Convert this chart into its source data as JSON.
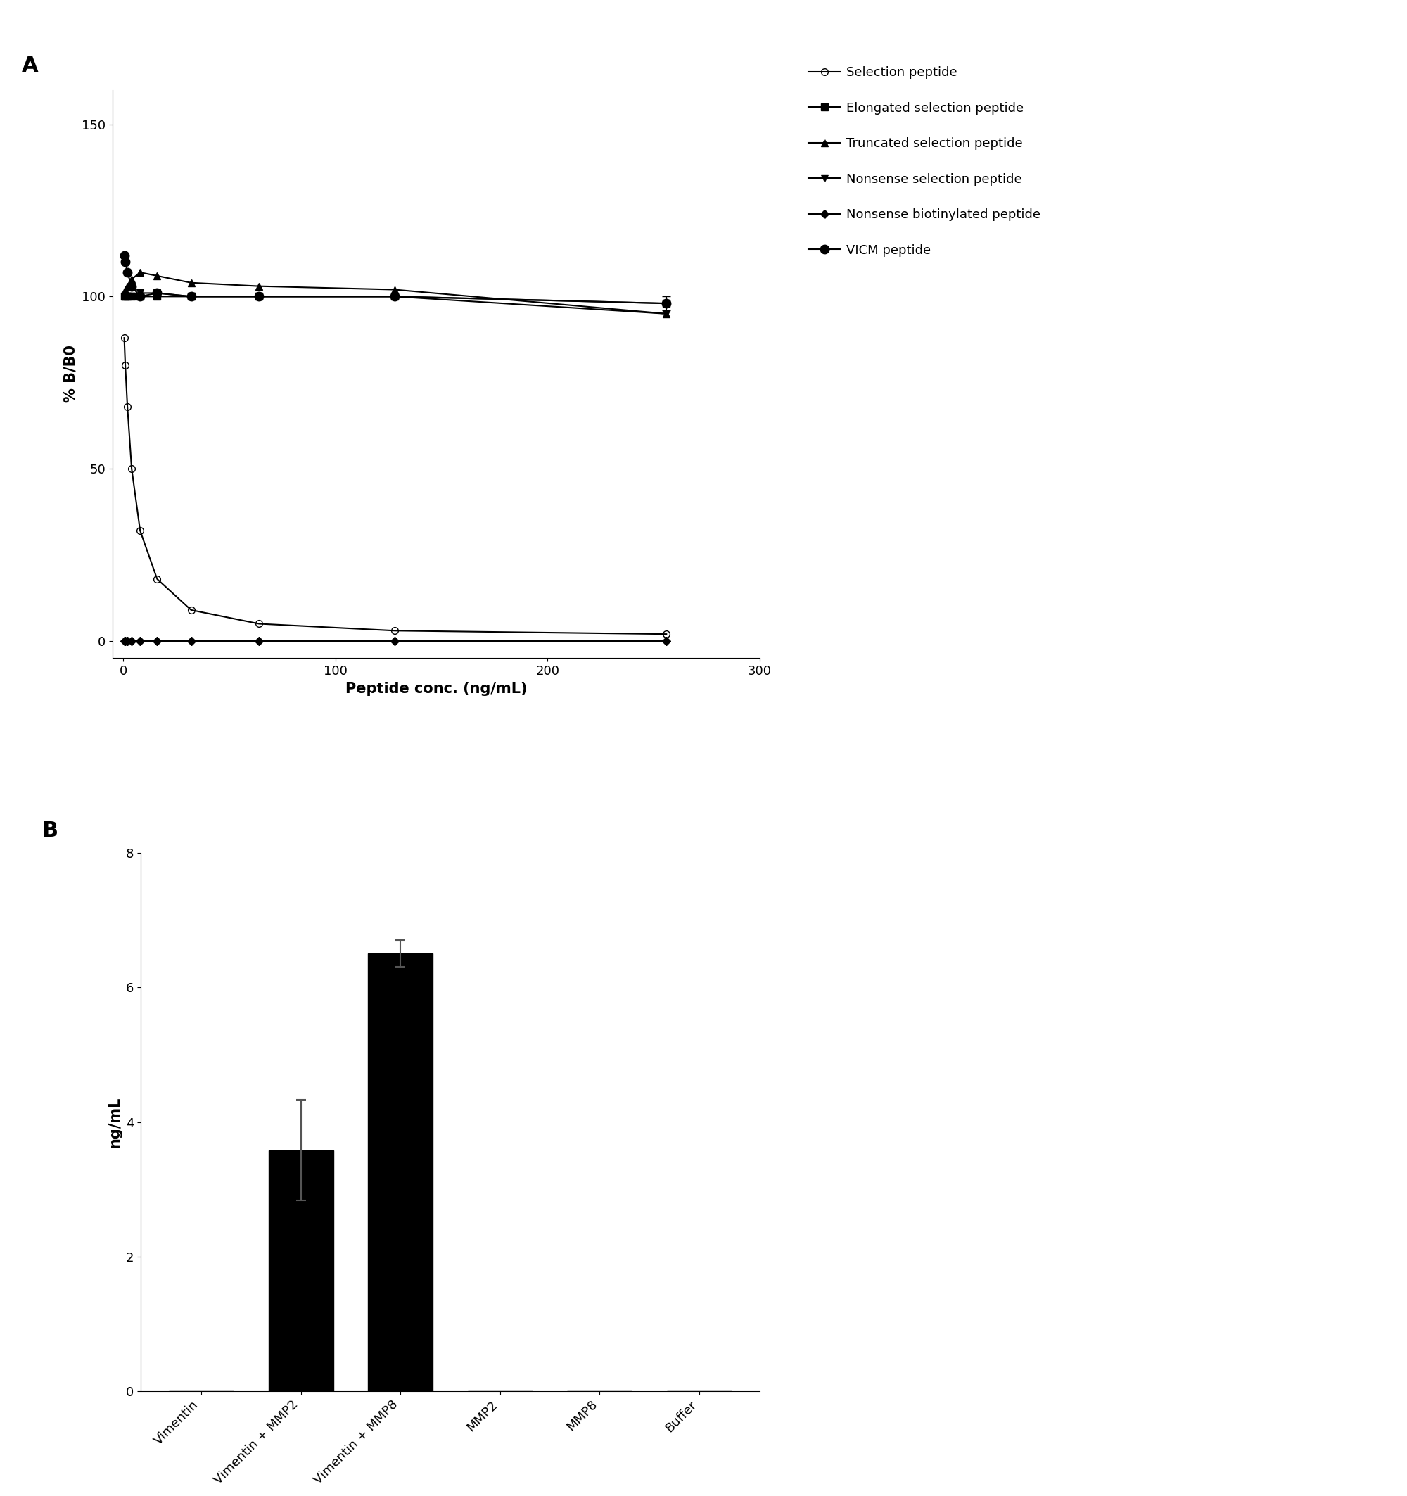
{
  "panel_A": {
    "xlabel": "Peptide conc. (ng/mL)",
    "ylabel": "% B/B0",
    "xlim": [
      -5,
      300
    ],
    "ylim": [
      -5,
      160
    ],
    "xticks": [
      0,
      100,
      200,
      300
    ],
    "yticks": [
      0,
      50,
      100,
      150
    ],
    "label_A": "A",
    "series": {
      "selection_peptide": {
        "x": [
          0.5,
          1,
          2,
          4,
          8,
          16,
          32,
          64,
          128,
          256
        ],
        "y": [
          88,
          80,
          68,
          50,
          32,
          18,
          9,
          5,
          3,
          2
        ],
        "label": "Selection peptide",
        "color": "#000000",
        "marker": "o",
        "fillstyle": "none",
        "markersize": 7,
        "linewidth": 1.5
      },
      "elongated_selection_peptide": {
        "x": [
          0.5,
          1,
          2,
          4,
          8,
          16,
          32,
          64,
          128,
          256
        ],
        "y": [
          100,
          100,
          100,
          100,
          100,
          100,
          100,
          100,
          100,
          98
        ],
        "label": "Elongated selection peptide",
        "color": "#000000",
        "marker": "s",
        "fillstyle": "full",
        "markersize": 7,
        "linewidth": 1.5,
        "error_x": 256,
        "error_y": 98,
        "error": 2
      },
      "truncated_selection_peptide": {
        "x": [
          0.5,
          1,
          2,
          4,
          8,
          16,
          32,
          64,
          128,
          256
        ],
        "y": [
          101,
          102,
          103,
          105,
          107,
          106,
          104,
          103,
          102,
          95
        ],
        "label": "Truncated selection peptide",
        "color": "#000000",
        "marker": "^",
        "fillstyle": "full",
        "markersize": 7,
        "linewidth": 1.5
      },
      "nonsense_selection_peptide": {
        "x": [
          0.5,
          1,
          2,
          4,
          8,
          16,
          32,
          64,
          128,
          256
        ],
        "y": [
          100,
          100,
          100,
          100,
          101,
          101,
          100,
          100,
          100,
          95
        ],
        "label": "Nonsense selection peptide",
        "color": "#000000",
        "marker": "v",
        "fillstyle": "full",
        "markersize": 7,
        "linewidth": 1.5
      },
      "nonsense_biotinylated_peptide": {
        "x": [
          0.5,
          1,
          2,
          4,
          8,
          16,
          32,
          64,
          128,
          256
        ],
        "y": [
          0,
          0,
          0,
          0,
          0,
          0,
          0,
          0,
          0,
          0
        ],
        "label": "Nonsense biotinylated peptide",
        "color": "#000000",
        "marker": "D",
        "fillstyle": "full",
        "markersize": 6,
        "linewidth": 1.5
      },
      "vicm_peptide": {
        "x": [
          0.5,
          1,
          2,
          4,
          8,
          16,
          32,
          64,
          128,
          256
        ],
        "y": [
          112,
          110,
          107,
          103,
          100,
          101,
          100,
          100,
          100,
          98
        ],
        "label": "VICM peptide",
        "color": "#000000",
        "marker": "o",
        "fillstyle": "full",
        "markersize": 9,
        "linewidth": 1.5
      }
    },
    "legend_order": [
      "selection_peptide",
      "elongated_selection_peptide",
      "truncated_selection_peptide",
      "nonsense_selection_peptide",
      "nonsense_biotinylated_peptide",
      "vicm_peptide"
    ]
  },
  "panel_B": {
    "xlabel": "",
    "ylabel": "ng/mL",
    "ylim": [
      0,
      8
    ],
    "yticks": [
      0,
      2,
      4,
      6,
      8
    ],
    "label_B": "B",
    "categories": [
      "Vimentin",
      "Vimentin + MMP2",
      "Vimentin + MMP8",
      "MMP2",
      "MMP8",
      "Buffer"
    ],
    "values": [
      0,
      3.58,
      6.5,
      0,
      0,
      0
    ],
    "errors": [
      0,
      0.75,
      0.2,
      0,
      0,
      0
    ],
    "bar_color": "#000000",
    "bar_width": 0.65
  },
  "background_color": "#ffffff"
}
